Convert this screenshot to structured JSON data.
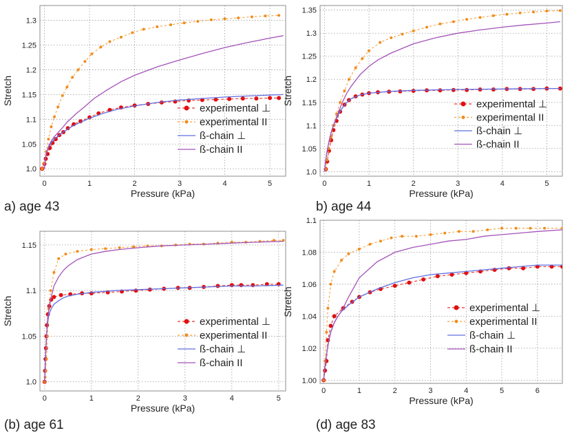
{
  "colors": {
    "exp_perp": "#e8322a",
    "exp_perp_marker": "#e01010",
    "exp_par": "#f5a03c",
    "exp_par_marker": "#f08c1c",
    "bchain_perp": "#5f6ee0",
    "bchain_par": "#a352b8"
  },
  "chart_data": [
    {
      "type": "line",
      "caption": "a) age 43",
      "xlabel": "Pressure (kPa)",
      "ylabel": "Stretch",
      "xlim": [
        -0.1,
        5.35
      ],
      "ylim": [
        0.985,
        1.33
      ],
      "xticks": [
        0,
        1,
        2,
        3,
        4,
        5
      ],
      "yticks": [
        1.0,
        1.05,
        1.1,
        1.15,
        1.2,
        1.25,
        1.3
      ],
      "ytick_labels": [
        "1.0",
        "1.05",
        "1.1",
        "1.15",
        "1.2",
        "1.25",
        "1.3"
      ],
      "legend": [
        "experimental ⊥",
        "experimental II",
        "ß-chain ⊥",
        "ß-chain II"
      ],
      "series": [
        {
          "name": "experimental ⊥",
          "style": "dashed-dots",
          "x": [
            -0.05,
            0,
            0.03,
            0.07,
            0.12,
            0.18,
            0.25,
            0.33,
            0.42,
            0.52,
            0.65,
            0.8,
            1.0,
            1.2,
            1.45,
            1.7,
            2.0,
            2.3,
            2.6,
            2.9,
            3.2,
            3.5,
            3.8,
            4.1,
            4.4,
            4.7,
            5.0,
            5.2
          ],
          "y": [
            1.0,
            1.01,
            1.02,
            1.03,
            1.042,
            1.052,
            1.06,
            1.068,
            1.074,
            1.082,
            1.09,
            1.096,
            1.104,
            1.112,
            1.119,
            1.124,
            1.128,
            1.131,
            1.134,
            1.136,
            1.138,
            1.139,
            1.14,
            1.141,
            1.142,
            1.142,
            1.143,
            1.143
          ]
        },
        {
          "name": "experimental II",
          "style": "dashed-dots",
          "x": [
            -0.05,
            0,
            0.04,
            0.09,
            0.15,
            0.22,
            0.3,
            0.4,
            0.5,
            0.62,
            0.75,
            0.9,
            1.05,
            1.25,
            1.45,
            1.7,
            1.95,
            2.2,
            2.5,
            2.8,
            3.1,
            3.4,
            3.7,
            4.0,
            4.3,
            4.6,
            4.9,
            5.2
          ],
          "y": [
            1.0,
            1.012,
            1.035,
            1.06,
            1.085,
            1.105,
            1.125,
            1.148,
            1.165,
            1.185,
            1.2,
            1.217,
            1.232,
            1.246,
            1.257,
            1.266,
            1.275,
            1.282,
            1.287,
            1.291,
            1.295,
            1.298,
            1.301,
            1.303,
            1.305,
            1.307,
            1.309,
            1.31
          ]
        },
        {
          "name": "ß-chain ⊥",
          "style": "solid",
          "x": [
            0,
            0.02,
            0.05,
            0.1,
            0.15,
            0.2,
            0.3,
            0.4,
            0.5,
            0.6,
            0.8,
            1.0,
            1.3,
            1.6,
            2.0,
            2.5,
            3.0,
            3.5,
            4.0,
            4.5,
            5.0,
            5.3
          ],
          "y": [
            1.0,
            1.02,
            1.033,
            1.045,
            1.052,
            1.058,
            1.066,
            1.073,
            1.079,
            1.085,
            1.094,
            1.102,
            1.112,
            1.12,
            1.127,
            1.134,
            1.139,
            1.142,
            1.145,
            1.147,
            1.149,
            1.15
          ]
        },
        {
          "name": "ß-chain II",
          "style": "solid",
          "x": [
            0,
            0.02,
            0.05,
            0.1,
            0.15,
            0.2,
            0.3,
            0.4,
            0.5,
            0.7,
            0.9,
            1.1,
            1.4,
            1.7,
            2.0,
            2.5,
            3.0,
            3.5,
            4.0,
            4.5,
            5.0,
            5.3
          ],
          "y": [
            1.0,
            1.02,
            1.034,
            1.047,
            1.056,
            1.063,
            1.073,
            1.083,
            1.094,
            1.111,
            1.126,
            1.142,
            1.16,
            1.176,
            1.189,
            1.206,
            1.22,
            1.233,
            1.245,
            1.255,
            1.264,
            1.269
          ]
        }
      ]
    },
    {
      "type": "line",
      "caption": "b) age 44",
      "xlabel": "Pressure (kPa)",
      "ylabel": "Stretch",
      "xlim": [
        -0.1,
        5.35
      ],
      "ylim": [
        0.99,
        1.36
      ],
      "xticks": [
        0,
        1,
        2,
        3,
        4,
        5
      ],
      "yticks": [
        1.0,
        1.05,
        1.1,
        1.15,
        1.2,
        1.25,
        1.3,
        1.35
      ],
      "ytick_labels": [
        "1.0",
        "1.05",
        "1.1",
        "1.15",
        "1.2",
        "1.25",
        "1.3",
        "1.35"
      ],
      "legend": [
        "experimental ⊥",
        "experimental II",
        "ß-chain ⊥",
        "ß-chain II"
      ],
      "series": [
        {
          "name": "experimental ⊥",
          "style": "dashed-dots",
          "x": [
            0.03,
            0.06,
            0.1,
            0.15,
            0.2,
            0.27,
            0.35,
            0.45,
            0.55,
            0.7,
            0.85,
            1.0,
            1.2,
            1.45,
            1.7,
            2.0,
            2.3,
            2.6,
            2.9,
            3.2,
            3.5,
            3.8,
            4.1,
            4.4,
            4.7,
            5.0,
            5.3
          ],
          "y": [
            1.005,
            1.022,
            1.045,
            1.068,
            1.09,
            1.11,
            1.13,
            1.145,
            1.155,
            1.163,
            1.167,
            1.17,
            1.172,
            1.173,
            1.174,
            1.175,
            1.176,
            1.176,
            1.177,
            1.177,
            1.178,
            1.178,
            1.179,
            1.179,
            1.179,
            1.18,
            1.18
          ]
        },
        {
          "name": "experimental II",
          "style": "dashed-dots",
          "x": [
            0.03,
            0.06,
            0.1,
            0.15,
            0.2,
            0.27,
            0.35,
            0.45,
            0.55,
            0.7,
            0.85,
            1.0,
            1.25,
            1.5,
            1.75,
            2.0,
            2.3,
            2.6,
            2.9,
            3.2,
            3.5,
            3.8,
            4.1,
            4.4,
            4.7,
            5.0,
            5.3
          ],
          "y": [
            1.005,
            1.025,
            1.05,
            1.075,
            1.1,
            1.125,
            1.15,
            1.175,
            1.2,
            1.225,
            1.245,
            1.262,
            1.28,
            1.29,
            1.298,
            1.305,
            1.313,
            1.32,
            1.325,
            1.33,
            1.334,
            1.338,
            1.341,
            1.344,
            1.346,
            1.348,
            1.349
          ]
        },
        {
          "name": "ß-chain ⊥",
          "style": "solid",
          "x": [
            0,
            0.02,
            0.05,
            0.1,
            0.15,
            0.2,
            0.3,
            0.4,
            0.5,
            0.6,
            0.8,
            1.0,
            1.5,
            2.0,
            3.0,
            4.0,
            5.0,
            5.3
          ],
          "y": [
            1.0,
            1.02,
            1.04,
            1.065,
            1.085,
            1.1,
            1.122,
            1.138,
            1.15,
            1.158,
            1.166,
            1.17,
            1.174,
            1.176,
            1.178,
            1.179,
            1.18,
            1.18
          ]
        },
        {
          "name": "ß-chain II",
          "style": "solid",
          "x": [
            0,
            0.02,
            0.05,
            0.1,
            0.15,
            0.2,
            0.3,
            0.4,
            0.5,
            0.6,
            0.8,
            1.0,
            1.2,
            1.5,
            2.0,
            2.5,
            3.0,
            3.5,
            4.0,
            4.5,
            5.0,
            5.3
          ],
          "y": [
            1.0,
            1.02,
            1.04,
            1.065,
            1.085,
            1.1,
            1.125,
            1.15,
            1.17,
            1.185,
            1.21,
            1.228,
            1.242,
            1.257,
            1.277,
            1.29,
            1.3,
            1.307,
            1.313,
            1.318,
            1.322,
            1.325
          ]
        }
      ]
    },
    {
      "type": "line",
      "caption": "(b) age 61",
      "xlabel": "Pressure (kPa)",
      "ylabel": "Stretch",
      "xlim": [
        -0.1,
        5.15
      ],
      "ylim": [
        0.99,
        1.165
      ],
      "xticks": [
        0,
        1,
        2,
        3,
        4,
        5
      ],
      "yticks": [
        1.0,
        1.05,
        1.1,
        1.15
      ],
      "ytick_labels": [
        "1.0",
        "1.05",
        "1.1",
        "1.15"
      ],
      "legend": [
        "experimental ⊥",
        "experimental II",
        "ß-chain ⊥",
        "ß-chain II"
      ],
      "series": [
        {
          "name": "experimental ⊥",
          "style": "dashed-dots",
          "x": [
            0,
            0.01,
            0.02,
            0.03,
            0.04,
            0.05,
            0.07,
            0.1,
            0.14,
            0.2,
            0.35,
            0.55,
            0.8,
            1.0,
            1.35,
            1.65,
            1.95,
            2.25,
            2.55,
            2.85,
            3.1,
            3.4,
            3.7,
            4.0,
            4.2,
            4.45,
            4.75,
            5.0
          ],
          "y": [
            1.0,
            1.012,
            1.025,
            1.037,
            1.05,
            1.062,
            1.074,
            1.083,
            1.09,
            1.093,
            1.095,
            1.096,
            1.097,
            1.097,
            1.098,
            1.099,
            1.1,
            1.101,
            1.102,
            1.103,
            1.103,
            1.104,
            1.105,
            1.106,
            1.106,
            1.106,
            1.107,
            1.107
          ]
        },
        {
          "name": "experimental II",
          "style": "dashed-dots",
          "x": [
            0,
            0.01,
            0.02,
            0.04,
            0.06,
            0.09,
            0.13,
            0.2,
            0.3,
            0.45,
            0.7,
            1.0,
            1.3,
            1.6,
            1.9,
            2.2,
            2.5,
            2.8,
            3.1,
            3.4,
            3.7,
            4.0,
            4.3,
            4.6,
            4.9,
            5.1
          ],
          "y": [
            1.0,
            1.005,
            1.012,
            1.025,
            1.05,
            1.08,
            1.1,
            1.12,
            1.135,
            1.14,
            1.143,
            1.145,
            1.146,
            1.147,
            1.148,
            1.149,
            1.149,
            1.15,
            1.151,
            1.151,
            1.152,
            1.153,
            1.153,
            1.154,
            1.155,
            1.155
          ]
        },
        {
          "name": "ß-chain ⊥",
          "style": "solid",
          "x": [
            0,
            0.02,
            0.04,
            0.06,
            0.08,
            0.1,
            0.15,
            0.2,
            0.3,
            0.4,
            0.5,
            0.7,
            1.0,
            1.5,
            2.0,
            2.5,
            3.0,
            3.5,
            4.0,
            4.5,
            5.1
          ],
          "y": [
            1.0,
            1.03,
            1.05,
            1.062,
            1.07,
            1.075,
            1.081,
            1.085,
            1.089,
            1.092,
            1.094,
            1.096,
            1.098,
            1.1,
            1.101,
            1.102,
            1.103,
            1.104,
            1.105,
            1.105,
            1.106
          ]
        },
        {
          "name": "ß-chain II",
          "style": "solid",
          "x": [
            0,
            0.02,
            0.04,
            0.06,
            0.08,
            0.1,
            0.15,
            0.2,
            0.3,
            0.4,
            0.5,
            0.7,
            1.0,
            1.3,
            1.6,
            2.0,
            2.5,
            3.0,
            3.5,
            4.0,
            4.5,
            5.1
          ],
          "y": [
            1.0,
            1.03,
            1.05,
            1.065,
            1.075,
            1.083,
            1.095,
            1.105,
            1.115,
            1.122,
            1.127,
            1.134,
            1.14,
            1.143,
            1.145,
            1.147,
            1.149,
            1.15,
            1.151,
            1.152,
            1.153,
            1.154
          ]
        }
      ]
    },
    {
      "type": "line",
      "caption": "(d) age 83",
      "xlabel": "Pressure (kPa)",
      "ylabel": "Stretch",
      "xlim": [
        -0.1,
        6.7
      ],
      "ylim": [
        0.998,
        1.1
      ],
      "xticks": [
        0,
        1,
        2,
        3,
        4,
        5,
        6
      ],
      "yticks": [
        1.0,
        1.02,
        1.04,
        1.06,
        1.08,
        1.1
      ],
      "ytick_labels": [
        "1.00",
        "1.02",
        "1.04",
        "1.06",
        "1.08",
        "1.1"
      ],
      "legend": [
        "experimental ⊥",
        "experimental II",
        "ß-chain ⊥",
        "ß-chain II"
      ],
      "series": [
        {
          "name": "experimental ⊥",
          "style": "dashed-dots",
          "x": [
            0,
            0.04,
            0.08,
            0.12,
            0.2,
            0.3,
            0.55,
            0.8,
            1.0,
            1.3,
            1.6,
            2.0,
            2.4,
            2.8,
            3.2,
            3.6,
            4.0,
            4.4,
            4.8,
            5.2,
            5.6,
            6.0,
            6.4,
            6.7
          ],
          "y": [
            1.0,
            1.006,
            1.012,
            1.025,
            1.034,
            1.04,
            1.045,
            1.049,
            1.052,
            1.055,
            1.057,
            1.059,
            1.061,
            1.063,
            1.065,
            1.066,
            1.067,
            1.068,
            1.069,
            1.07,
            1.07,
            1.071,
            1.071,
            1.071
          ]
        },
        {
          "name": "experimental II",
          "style": "dashed-dots",
          "x": [
            0,
            0.04,
            0.08,
            0.12,
            0.2,
            0.3,
            0.5,
            0.7,
            1.0,
            1.3,
            1.6,
            1.9,
            2.2,
            2.6,
            3.0,
            3.4,
            3.8,
            4.2,
            4.6,
            5.0,
            5.4,
            5.8,
            6.2,
            6.7
          ],
          "y": [
            1.0,
            1.012,
            1.03,
            1.045,
            1.06,
            1.068,
            1.075,
            1.079,
            1.082,
            1.085,
            1.087,
            1.089,
            1.09,
            1.09,
            1.091,
            1.092,
            1.093,
            1.093,
            1.094,
            1.095,
            1.095,
            1.095,
            1.095,
            1.095
          ]
        },
        {
          "name": "ß-chain ⊥",
          "style": "solid",
          "x": [
            0,
            0.02,
            0.05,
            0.1,
            0.15,
            0.2,
            0.3,
            0.4,
            0.5,
            0.7,
            1.0,
            1.5,
            2.0,
            2.5,
            3.0,
            3.5,
            4.0,
            4.5,
            5.0,
            5.5,
            6.0,
            6.7
          ],
          "y": [
            1.0,
            1.005,
            1.011,
            1.019,
            1.025,
            1.03,
            1.036,
            1.04,
            1.043,
            1.047,
            1.052,
            1.057,
            1.061,
            1.064,
            1.066,
            1.067,
            1.068,
            1.069,
            1.07,
            1.071,
            1.072,
            1.072
          ]
        },
        {
          "name": "ß-chain II",
          "style": "solid",
          "x": [
            0,
            0.02,
            0.05,
            0.1,
            0.15,
            0.2,
            0.3,
            0.4,
            0.5,
            0.7,
            1.0,
            1.5,
            2.0,
            2.5,
            3.0,
            3.5,
            4.0,
            4.5,
            5.0,
            5.5,
            6.0,
            6.7
          ],
          "y": [
            1.0,
            1.005,
            1.011,
            1.019,
            1.025,
            1.03,
            1.036,
            1.04,
            1.043,
            1.052,
            1.064,
            1.074,
            1.08,
            1.083,
            1.085,
            1.087,
            1.088,
            1.09,
            1.091,
            1.092,
            1.093,
            1.094
          ]
        }
      ]
    }
  ]
}
